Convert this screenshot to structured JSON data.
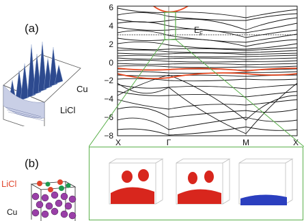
{
  "panels": {
    "a": "(a)",
    "b": "(b)"
  },
  "surface3d": {
    "axis_cu": "Cu",
    "axis_licl": "LiCl"
  },
  "structure": {
    "label_licl": "LiCl",
    "label_cu": "Cu",
    "licl_color": "#e0452c",
    "cl_color": "#1d9a50",
    "cu_color": "#9a3fa8"
  },
  "bands": {
    "y_ticks": [
      "6",
      "4",
      "2",
      "0",
      "−2",
      "−4",
      "−6",
      "−8"
    ],
    "x_ticks": [
      "X",
      "Γ",
      "M",
      "X"
    ],
    "fermi_label": "E",
    "fermi_sub": "F",
    "band_color": "#111111",
    "highlight_color": "#e8471f",
    "zoom_color": "#5ab04a"
  },
  "orbitals": {
    "colors": [
      "#d8261d",
      "#d8261d",
      "#2b3fbf"
    ]
  }
}
